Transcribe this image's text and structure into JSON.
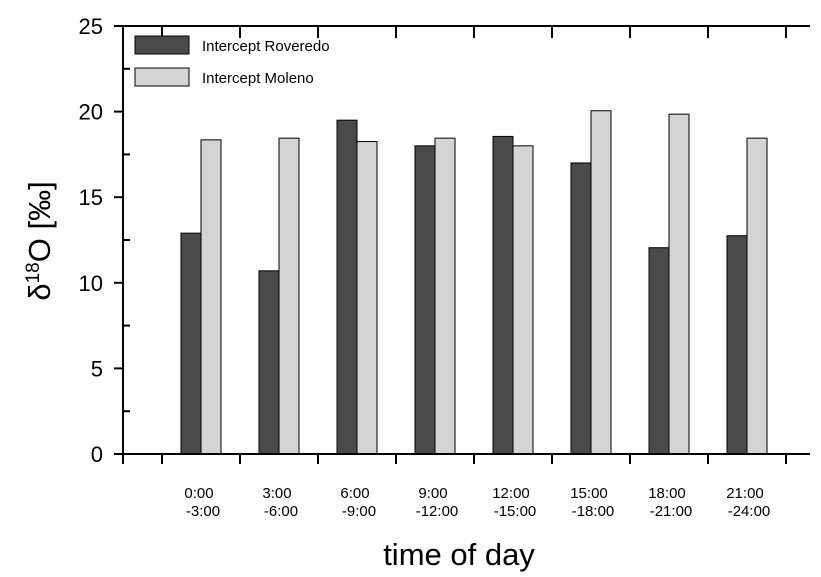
{
  "chart_data": {
    "type": "bar",
    "categories": [
      [
        "0:00",
        "-3:00"
      ],
      [
        "3:00",
        "-6:00"
      ],
      [
        "6:00",
        "-9:00"
      ],
      [
        "9:00",
        "-12:00"
      ],
      [
        "12:00",
        "-15:00"
      ],
      [
        "15:00",
        "-18:00"
      ],
      [
        "18:00",
        "-21:00"
      ],
      [
        "21:00",
        "-24:00"
      ]
    ],
    "series": [
      {
        "name": "Intercept Roveredo",
        "color": "#4a4a4a",
        "values": [
          12.9,
          10.7,
          19.5,
          18.0,
          18.55,
          17.0,
          12.05,
          12.75
        ]
      },
      {
        "name": "Intercept Moleno",
        "color": "#d4d4d4",
        "values": [
          18.35,
          18.45,
          18.25,
          18.45,
          18.0,
          20.05,
          19.85,
          18.45
        ]
      }
    ],
    "title": "",
    "xlabel": "time of day",
    "ylabel_prefix": "δ",
    "ylabel_superscript": "18",
    "ylabel_suffix": "O [‰]",
    "ylim": [
      0,
      25
    ],
    "yticks_major": [
      0,
      5,
      10,
      15,
      20,
      25
    ],
    "yticks_minor": [
      2.5,
      7.5,
      12.5,
      17.5,
      22.5
    ],
    "grid": false,
    "legend_position": "top-left"
  }
}
